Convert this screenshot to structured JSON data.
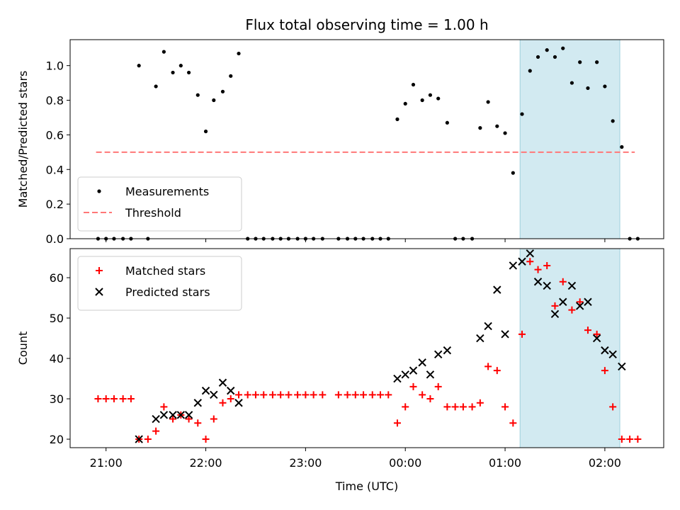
{
  "chart_data": {
    "title": "Flux total observing time = 1.00 h",
    "xlabel": "Time (UTC)",
    "x_ticks": [
      "21:00",
      "22:00",
      "23:00",
      "00:00",
      "01:00",
      "02:00"
    ],
    "x_tick_hours": [
      21,
      22,
      23,
      24,
      25,
      26
    ],
    "xlim_hours": [
      20.64,
      26.59
    ],
    "highlight_span_hours": [
      25.15,
      26.15
    ],
    "highlight_color": "#add8e6",
    "panels": [
      {
        "type": "scatter",
        "ylabel": "Matched/Predicted stars",
        "ylim": [
          0,
          1.15
        ],
        "y_ticks": [
          0.0,
          0.2,
          0.4,
          0.6,
          0.8,
          1.0
        ],
        "y_tick_labels": [
          "0.0",
          "0.2",
          "0.4",
          "0.6",
          "0.8",
          "1.0"
        ],
        "legend_position": "lower-left",
        "threshold": {
          "name": "Threshold",
          "value": 0.5,
          "x_range_hours": [
            20.9,
            26.3
          ],
          "color": "#ff7777"
        },
        "series": [
          {
            "name": "Measurements",
            "marker": "dot",
            "color": "#000000",
            "x": [
              20.92,
              21.0,
              21.08,
              21.17,
              21.25,
              21.33,
              21.42,
              21.5,
              21.58,
              21.67,
              21.75,
              21.83,
              21.92,
              22.0,
              22.08,
              22.17,
              22.25,
              22.33,
              22.42,
              22.5,
              22.58,
              22.67,
              22.75,
              22.83,
              22.92,
              23.0,
              23.08,
              23.17,
              23.33,
              23.42,
              23.5,
              23.58,
              23.67,
              23.75,
              23.83,
              23.92,
              24.0,
              24.08,
              24.17,
              24.25,
              24.33,
              24.42,
              24.5,
              24.58,
              24.67,
              24.75,
              24.83,
              24.92,
              25.0,
              25.08,
              25.17,
              25.25,
              25.33,
              25.42,
              25.5,
              25.58,
              25.67,
              25.75,
              25.83,
              25.92,
              26.0,
              26.08,
              26.17,
              26.25,
              26.33
            ],
            "y": [
              0,
              0,
              0,
              0,
              0,
              1.0,
              0,
              0.88,
              1.08,
              0.96,
              1.0,
              0.96,
              0.83,
              0.62,
              0.8,
              0.85,
              0.94,
              1.07,
              0,
              0,
              0,
              0,
              0,
              0,
              0,
              0,
              0,
              0,
              0,
              0,
              0,
              0,
              0,
              0,
              0,
              0.69,
              0.78,
              0.89,
              0.8,
              0.83,
              0.81,
              0.67,
              0,
              0,
              0,
              0.64,
              0.79,
              0.65,
              0.61,
              0.38,
              0.72,
              0.97,
              1.05,
              1.09,
              1.05,
              1.1,
              0.9,
              1.02,
              0.87,
              1.02,
              0.88,
              0.68,
              0.53,
              0,
              0
            ]
          }
        ]
      },
      {
        "type": "scatter",
        "ylabel": "Count",
        "ylim": [
          17.9,
          67.2
        ],
        "y_ticks": [
          20,
          30,
          40,
          50,
          60
        ],
        "y_tick_labels": [
          "20",
          "30",
          "40",
          "50",
          "60"
        ],
        "legend_position": "upper-left",
        "series": [
          {
            "name": "Matched stars",
            "marker": "plus",
            "color": "#ff0000",
            "x": [
              20.92,
              21.0,
              21.08,
              21.17,
              21.25,
              21.33,
              21.42,
              21.5,
              21.58,
              21.67,
              21.75,
              21.83,
              21.92,
              22.0,
              22.08,
              22.17,
              22.25,
              22.33,
              22.42,
              22.5,
              22.58,
              22.67,
              22.75,
              22.83,
              22.92,
              23.0,
              23.08,
              23.17,
              23.33,
              23.42,
              23.5,
              23.58,
              23.67,
              23.75,
              23.83,
              23.92,
              24.0,
              24.08,
              24.17,
              24.25,
              24.33,
              24.42,
              24.5,
              24.58,
              24.67,
              24.75,
              24.83,
              24.92,
              25.0,
              25.08,
              25.17,
              25.25,
              25.33,
              25.42,
              25.5,
              25.58,
              25.67,
              25.75,
              25.83,
              25.92,
              26.0,
              26.08,
              26.17,
              26.25,
              26.33
            ],
            "y": [
              30,
              30,
              30,
              30,
              30,
              20,
              20,
              22,
              28,
              25,
              26,
              25,
              24,
              20,
              25,
              29,
              30,
              31,
              31,
              31,
              31,
              31,
              31,
              31,
              31,
              31,
              31,
              31,
              31,
              31,
              31,
              31,
              31,
              31,
              31,
              24,
              28,
              33,
              31,
              30,
              33,
              28,
              28,
              28,
              28,
              29,
              38,
              37,
              28,
              24,
              46,
              64,
              62,
              63,
              53,
              59,
              52,
              54,
              47,
              46,
              37,
              28,
              20,
              20,
              20
            ]
          },
          {
            "name": "Predicted stars",
            "marker": "x",
            "color": "#000000",
            "x": [
              21.33,
              21.5,
              21.58,
              21.67,
              21.75,
              21.83,
              21.92,
              22.0,
              22.08,
              22.17,
              22.25,
              22.33,
              23.92,
              24.0,
              24.08,
              24.17,
              24.25,
              24.33,
              24.42,
              24.75,
              24.83,
              24.92,
              25.0,
              25.08,
              25.17,
              25.25,
              25.33,
              25.42,
              25.5,
              25.58,
              25.67,
              25.75,
              25.83,
              25.92,
              26.0,
              26.08,
              26.17
            ],
            "y": [
              20,
              25,
              26,
              26,
              26,
              26,
              29,
              32,
              31,
              34,
              32,
              29,
              35,
              36,
              37,
              39,
              36,
              41,
              42,
              45,
              48,
              57,
              46,
              63,
              64,
              66,
              59,
              58,
              51,
              54,
              58,
              53,
              54,
              45,
              42,
              41,
              38
            ]
          }
        ]
      }
    ]
  }
}
